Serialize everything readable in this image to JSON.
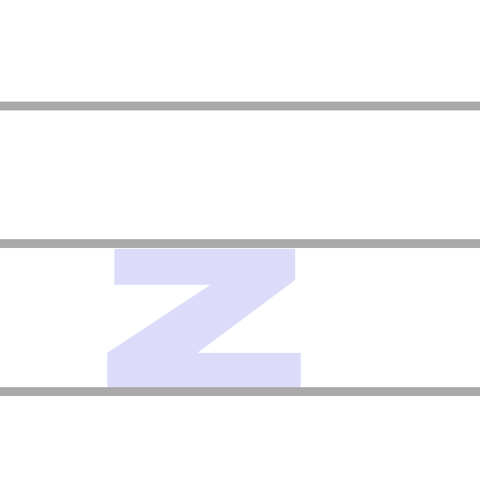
{
  "letter": "z",
  "colors": {
    "background": "#ffffff",
    "guide_line": "#aaaaaa",
    "letter_fill": "#dcdcfa"
  },
  "guides": [
    {
      "name": "ascender-line"
    },
    {
      "name": "x-height-line"
    },
    {
      "name": "baseline"
    }
  ]
}
